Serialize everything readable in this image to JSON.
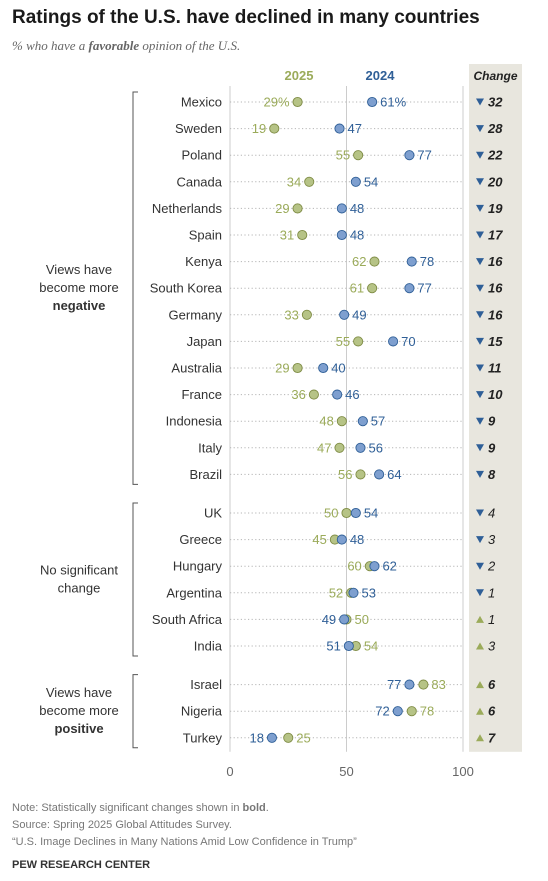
{
  "title": "Ratings of the U.S. have declined in many countries",
  "subtitle": {
    "before": "% who have a ",
    "bold": "favorable",
    "after": " opinion of the U.S."
  },
  "colors": {
    "y2025": "#9bab5a",
    "y2024": "#2f5f97",
    "dot2025": "#b6c386",
    "dot2024": "#7e9fcf",
    "text": "#333333",
    "change_bg": "#e8e6de",
    "grid": "#cccccc",
    "axis_text": "#666666",
    "notes": "#777777"
  },
  "chart_data": {
    "type": "dot",
    "x_range": [
      0,
      100
    ],
    "x_ticks": [
      0,
      50,
      100
    ],
    "series": [
      {
        "name": "2025",
        "key": "v2025"
      },
      {
        "name": "2024",
        "key": "v2024"
      }
    ],
    "change_header": "Change",
    "groups": [
      {
        "label_lines": [
          "Views have",
          "become more"
        ],
        "label_bold": "negative",
        "rows": [
          {
            "country": "Mexico",
            "v2025": 29,
            "v2024": 61,
            "label2025": "29%",
            "label2024": "61%",
            "change": 32,
            "dir": "down",
            "significant": true
          },
          {
            "country": "Sweden",
            "v2025": 19,
            "v2024": 47,
            "label2025": "19",
            "label2024": "47",
            "change": 28,
            "dir": "down",
            "significant": true
          },
          {
            "country": "Poland",
            "v2025": 55,
            "v2024": 77,
            "label2025": "55",
            "label2024": "77",
            "change": 22,
            "dir": "down",
            "significant": true
          },
          {
            "country": "Canada",
            "v2025": 34,
            "v2024": 54,
            "label2025": "34",
            "label2024": "54",
            "change": 20,
            "dir": "down",
            "significant": true
          },
          {
            "country": "Netherlands",
            "v2025": 29,
            "v2024": 48,
            "label2025": "29",
            "label2024": "48",
            "change": 19,
            "dir": "down",
            "significant": true
          },
          {
            "country": "Spain",
            "v2025": 31,
            "v2024": 48,
            "label2025": "31",
            "label2024": "48",
            "change": 17,
            "dir": "down",
            "significant": true
          },
          {
            "country": "Kenya",
            "v2025": 62,
            "v2024": 78,
            "label2025": "62",
            "label2024": "78",
            "change": 16,
            "dir": "down",
            "significant": true
          },
          {
            "country": "South Korea",
            "v2025": 61,
            "v2024": 77,
            "label2025": "61",
            "label2024": "77",
            "change": 16,
            "dir": "down",
            "significant": true
          },
          {
            "country": "Germany",
            "v2025": 33,
            "v2024": 49,
            "label2025": "33",
            "label2024": "49",
            "change": 16,
            "dir": "down",
            "significant": true
          },
          {
            "country": "Japan",
            "v2025": 55,
            "v2024": 70,
            "label2025": "55",
            "label2024": "70",
            "change": 15,
            "dir": "down",
            "significant": true
          },
          {
            "country": "Australia",
            "v2025": 29,
            "v2024": 40,
            "label2025": "29",
            "label2024": "40",
            "change": 11,
            "dir": "down",
            "significant": true
          },
          {
            "country": "France",
            "v2025": 36,
            "v2024": 46,
            "label2025": "36",
            "label2024": "46",
            "change": 10,
            "dir": "down",
            "significant": true
          },
          {
            "country": "Indonesia",
            "v2025": 48,
            "v2024": 57,
            "label2025": "48",
            "label2024": "57",
            "change": 9,
            "dir": "down",
            "significant": true
          },
          {
            "country": "Italy",
            "v2025": 47,
            "v2024": 56,
            "label2025": "47",
            "label2024": "56",
            "change": 9,
            "dir": "down",
            "significant": true
          },
          {
            "country": "Brazil",
            "v2025": 56,
            "v2024": 64,
            "label2025": "56",
            "label2024": "64",
            "change": 8,
            "dir": "down",
            "significant": true
          }
        ]
      },
      {
        "label_lines": [
          "No significant",
          "change"
        ],
        "label_bold": "",
        "rows": [
          {
            "country": "UK",
            "v2025": 50,
            "v2024": 54,
            "label2025": "50",
            "label2024": "54",
            "change": 4,
            "dir": "down",
            "significant": false
          },
          {
            "country": "Greece",
            "v2025": 45,
            "v2024": 48,
            "label2025": "45",
            "label2024": "48",
            "change": 3,
            "dir": "down",
            "significant": false
          },
          {
            "country": "Hungary",
            "v2025": 60,
            "v2024": 62,
            "label2025": "60",
            "label2024": "62",
            "change": 2,
            "dir": "down",
            "significant": false
          },
          {
            "country": "Argentina",
            "v2025": 52,
            "v2024": 53,
            "label2025": "52",
            "label2024": "53",
            "change": 1,
            "dir": "down",
            "significant": false
          },
          {
            "country": "South Africa",
            "v2025": 50,
            "v2024": 49,
            "label2025": "50",
            "label2024": "49",
            "change": 1,
            "dir": "up",
            "significant": false
          },
          {
            "country": "India",
            "v2025": 54,
            "v2024": 51,
            "label2025": "54",
            "label2024": "51",
            "change": 3,
            "dir": "up",
            "significant": false
          }
        ]
      },
      {
        "label_lines": [
          "Views have",
          "become more"
        ],
        "label_bold": "positive",
        "rows": [
          {
            "country": "Israel",
            "v2025": 83,
            "v2024": 77,
            "label2025": "83",
            "label2024": "77",
            "change": 6,
            "dir": "up",
            "significant": true
          },
          {
            "country": "Nigeria",
            "v2025": 78,
            "v2024": 72,
            "label2025": "78",
            "label2024": "72",
            "change": 6,
            "dir": "up",
            "significant": true
          },
          {
            "country": "Turkey",
            "v2025": 25,
            "v2024": 18,
            "label2025": "25",
            "label2024": "18",
            "change": 7,
            "dir": "up",
            "significant": true
          }
        ]
      }
    ]
  },
  "notes": {
    "note_prefix": "Note: Statistically significant changes shown in ",
    "note_bold": "bold",
    "note_suffix": ".",
    "source": "Source: Spring 2025 Global Attitudes Survey.",
    "report": "“U.S. Image Declines in Many Nations Amid Low Confidence in Trump”",
    "org": "PEW RESEARCH CENTER"
  }
}
